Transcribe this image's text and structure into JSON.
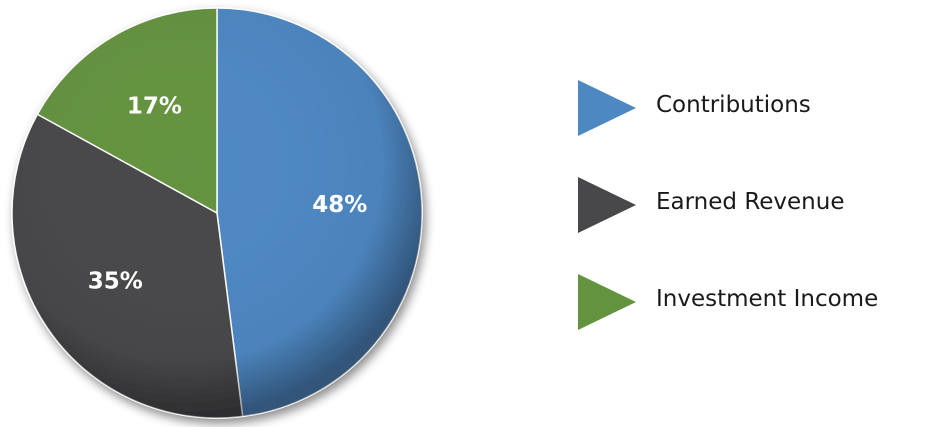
{
  "chart_data": {
    "type": "pie",
    "title": "",
    "legend_position": "right",
    "slices": [
      {
        "label": "Contributions",
        "value": 48,
        "value_label": "48%",
        "color": "#4e88c3"
      },
      {
        "label": "Earned Revenue",
        "value": 35,
        "value_label": "35%",
        "color": "#48484b"
      },
      {
        "label": "Investment Income",
        "value": 17,
        "value_label": "17%",
        "color": "#64933f"
      }
    ]
  }
}
